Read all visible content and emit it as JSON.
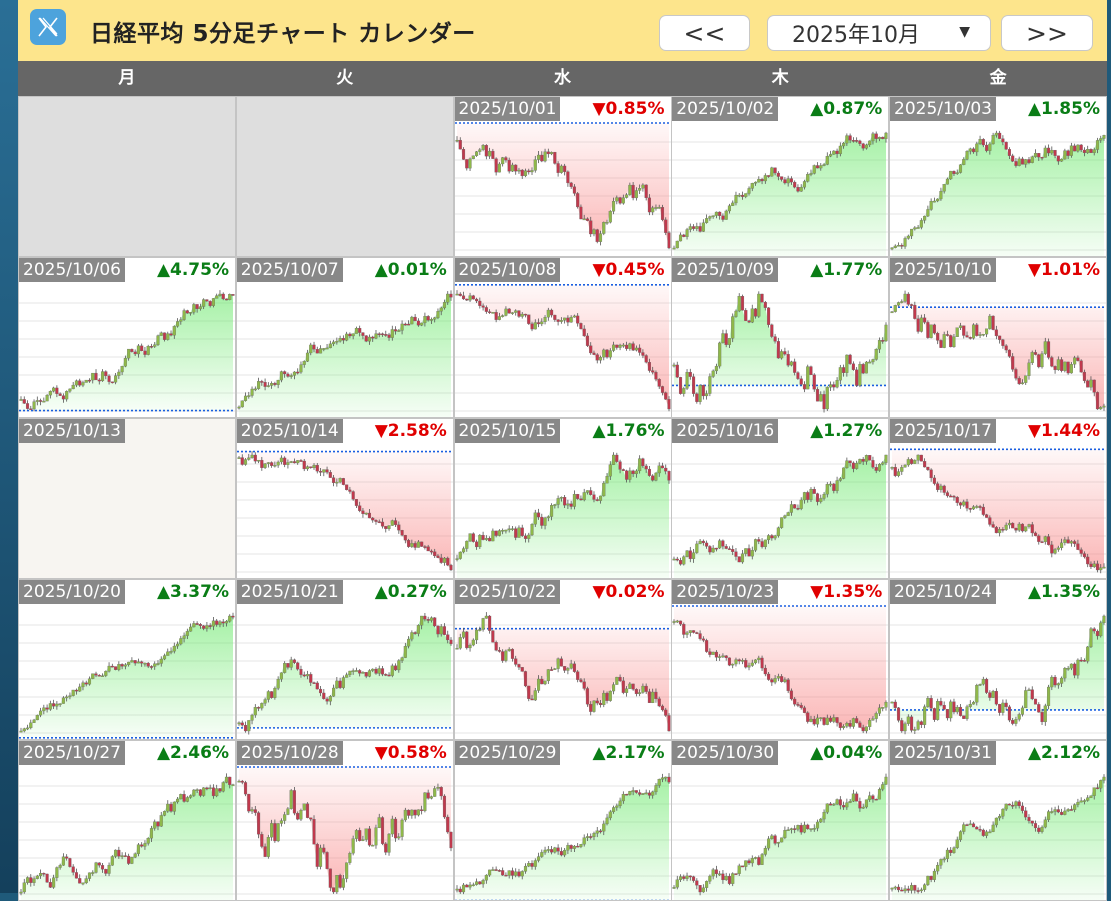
{
  "header": {
    "logo_icon": "x-logo-icon",
    "title": "日経平均 5分足チャート カレンダー",
    "prev_label": "<<",
    "next_label": ">>",
    "month_label": "2025年10月"
  },
  "weekdays": [
    "月",
    "火",
    "水",
    "木",
    "金"
  ],
  "colors": {
    "up": "#0a7d16",
    "down": "#e00000",
    "fill_up": "#5ee65e",
    "fill_down": "#f77b7b",
    "prev_close_line": "#1a5fe0"
  },
  "calendar": {
    "cells": [
      {
        "type": "empty"
      },
      {
        "type": "empty"
      },
      {
        "type": "day",
        "date": "2025/10/01",
        "dir": "down",
        "change": "▼0.85%"
      },
      {
        "type": "day",
        "date": "2025/10/02",
        "dir": "up",
        "change": "▲0.87%"
      },
      {
        "type": "day",
        "date": "2025/10/03",
        "dir": "up",
        "change": "▲1.85%"
      },
      {
        "type": "day",
        "date": "2025/10/06",
        "dir": "up",
        "change": "▲4.75%"
      },
      {
        "type": "day",
        "date": "2025/10/07",
        "dir": "up",
        "change": "▲0.01%"
      },
      {
        "type": "day",
        "date": "2025/10/08",
        "dir": "down",
        "change": "▼0.45%"
      },
      {
        "type": "day",
        "date": "2025/10/09",
        "dir": "up",
        "change": "▲1.77%"
      },
      {
        "type": "day",
        "date": "2025/10/10",
        "dir": "down",
        "change": "▼1.01%"
      },
      {
        "type": "holiday",
        "date": "2025/10/13"
      },
      {
        "type": "day",
        "date": "2025/10/14",
        "dir": "down",
        "change": "▼2.58%"
      },
      {
        "type": "day",
        "date": "2025/10/15",
        "dir": "up",
        "change": "▲1.76%"
      },
      {
        "type": "day",
        "date": "2025/10/16",
        "dir": "up",
        "change": "▲1.27%"
      },
      {
        "type": "day",
        "date": "2025/10/17",
        "dir": "down",
        "change": "▼1.44%"
      },
      {
        "type": "day",
        "date": "2025/10/20",
        "dir": "up",
        "change": "▲3.37%"
      },
      {
        "type": "day",
        "date": "2025/10/21",
        "dir": "up",
        "change": "▲0.27%"
      },
      {
        "type": "day",
        "date": "2025/10/22",
        "dir": "down",
        "change": "▼0.02%"
      },
      {
        "type": "day",
        "date": "2025/10/23",
        "dir": "down",
        "change": "▼1.35%"
      },
      {
        "type": "day",
        "date": "2025/10/24",
        "dir": "up",
        "change": "▲1.35%"
      },
      {
        "type": "day",
        "date": "2025/10/27",
        "dir": "up",
        "change": "▲2.46%"
      },
      {
        "type": "day",
        "date": "2025/10/28",
        "dir": "down",
        "change": "▼0.58%"
      },
      {
        "type": "day",
        "date": "2025/10/29",
        "dir": "up",
        "change": "▲2.17%"
      },
      {
        "type": "day",
        "date": "2025/10/30",
        "dir": "up",
        "change": "▲0.04%"
      },
      {
        "type": "day",
        "date": "2025/10/31",
        "dir": "up",
        "change": "▲2.12%"
      }
    ]
  }
}
